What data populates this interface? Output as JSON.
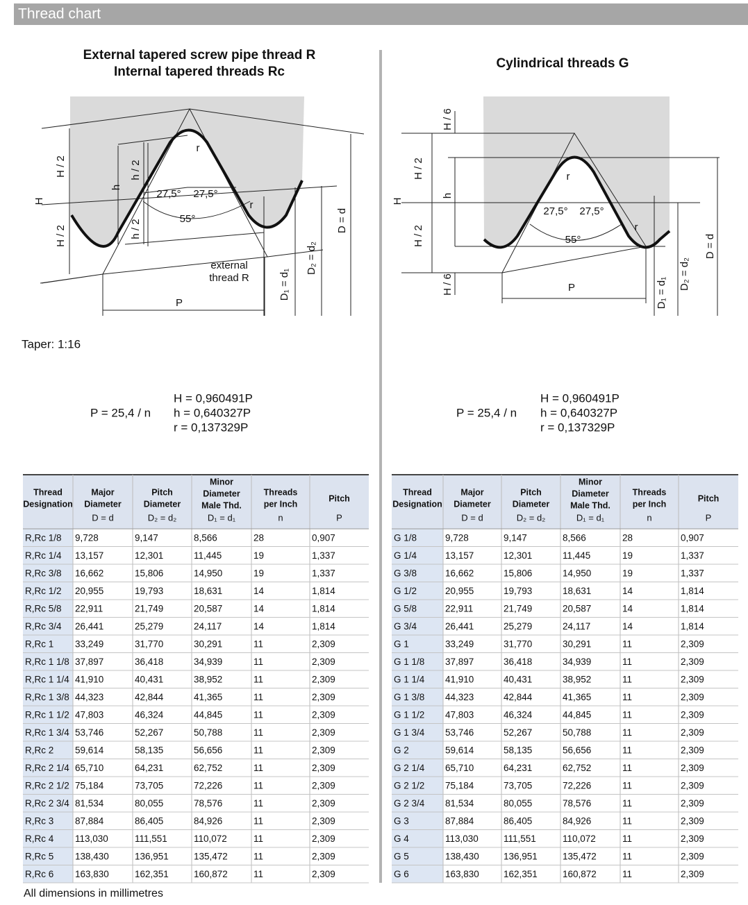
{
  "header": {
    "title": "Thread chart"
  },
  "left": {
    "title_lines": [
      "External tapered screw pipe thread R",
      "Internal tapered threads Rc"
    ],
    "diagram": {
      "h2a": "H / 2",
      "H": "H",
      "h2b": "H / 2",
      "h": "h",
      "hh2a": "h / 2",
      "hh2b": "h / 2",
      "a1": "27,5°",
      "a2": "27,5°",
      "a55": "55°",
      "r1": "r",
      "r2": "r",
      "ext1": "external",
      "ext2": "thread R",
      "P": "P",
      "D1": "D₁ = d₁",
      "D2": "D₂ = d₂",
      "D": "D = d"
    },
    "taper": "Taper: 1:16",
    "formula": {
      "p": "P = 25,4 / n",
      "lines": [
        "H = 0,960491P",
        "h = 0,640327P",
        "r = 0,137329P"
      ]
    },
    "table": {
      "headers": [
        {
          "lines": [
            "Thread",
            "Designation"
          ]
        },
        {
          "lines": [
            "Major",
            "Diameter"
          ],
          "unit": "D = d"
        },
        {
          "lines": [
            "Pitch",
            "Diameter"
          ],
          "unit": "D₂ = d₂"
        },
        {
          "lines": [
            "Minor",
            "Diameter",
            "Male Thd."
          ],
          "unit": "D₁ = d₁"
        },
        {
          "lines": [
            "Threads",
            "per Inch"
          ],
          "unit": "n"
        },
        {
          "lines": [
            "Pitch"
          ],
          "unit": "P"
        }
      ],
      "rows": [
        [
          "R,Rc 1/8",
          "9,728",
          "9,147",
          "8,566",
          "28",
          "0,907"
        ],
        [
          "R,Rc 1/4",
          "13,157",
          "12,301",
          "11,445",
          "19",
          "1,337"
        ],
        [
          "R,Rc 3/8",
          "16,662",
          "15,806",
          "14,950",
          "19",
          "1,337"
        ],
        [
          "R,Rc 1/2",
          "20,955",
          "19,793",
          "18,631",
          "14",
          "1,814"
        ],
        [
          "R,Rc 5/8",
          "22,911",
          "21,749",
          "20,587",
          "14",
          "1,814"
        ],
        [
          "R,Rc 3/4",
          "26,441",
          "25,279",
          "24,117",
          "14",
          "1,814"
        ],
        [
          "R,Rc 1",
          "33,249",
          "31,770",
          "30,291",
          "11",
          "2,309"
        ],
        [
          "R,Rc 1 1/8",
          "37,897",
          "36,418",
          "34,939",
          "11",
          "2,309"
        ],
        [
          "R,Rc 1 1/4",
          "41,910",
          "40,431",
          "38,952",
          "11",
          "2,309"
        ],
        [
          "R,Rc 1 3/8",
          "44,323",
          "42,844",
          "41,365",
          "11",
          "2,309"
        ],
        [
          "R,Rc 1 1/2",
          "47,803",
          "46,324",
          "44,845",
          "11",
          "2,309"
        ],
        [
          "R,Rc 1 3/4",
          "53,746",
          "52,267",
          "50,788",
          "11",
          "2,309"
        ],
        [
          "R,Rc 2",
          "59,614",
          "58,135",
          "56,656",
          "11",
          "2,309"
        ],
        [
          "R,Rc 2 1/4",
          "65,710",
          "64,231",
          "62,752",
          "11",
          "2,309"
        ],
        [
          "R,Rc 2 1/2",
          "75,184",
          "73,705",
          "72,226",
          "11",
          "2,309"
        ],
        [
          "R,Rc 2 3/4",
          "81,534",
          "80,055",
          "78,576",
          "11",
          "2,309"
        ],
        [
          "R,Rc 3",
          "87,884",
          "86,405",
          "84,926",
          "11",
          "2,309"
        ],
        [
          "R,Rc 4",
          "113,030",
          "111,551",
          "110,072",
          "11",
          "2,309"
        ],
        [
          "R,Rc 5",
          "138,430",
          "136,951",
          "135,472",
          "11",
          "2,309"
        ],
        [
          "R,Rc 6",
          "163,830",
          "162,351",
          "160,872",
          "11",
          "2,309"
        ]
      ]
    }
  },
  "right": {
    "title_lines": [
      "Cylindrical threads G"
    ],
    "diagram": {
      "h6a": "H / 6",
      "h2a": "H / 2",
      "H": "H",
      "h": "h",
      "h2b": "H / 2",
      "h6b": "H / 6",
      "a1": "27,5°",
      "a2": "27,5°",
      "a55": "55°",
      "r1": "r",
      "r2": "r",
      "P": "P",
      "D1": "D₁ = d₁",
      "D2": "D₂ = d₂",
      "D": "D = d"
    },
    "formula": {
      "p": "P = 25,4 / n",
      "lines": [
        "H = 0,960491P",
        "h = 0,640327P",
        "r = 0,137329P"
      ]
    },
    "table": {
      "headers": [
        {
          "lines": [
            "Thread",
            "Designation"
          ]
        },
        {
          "lines": [
            "Major",
            "Diameter"
          ],
          "unit": "D = d"
        },
        {
          "lines": [
            "Pitch",
            "Diameter"
          ],
          "unit": "D₂ = d₂"
        },
        {
          "lines": [
            "Minor",
            "Diameter",
            "Male Thd."
          ],
          "unit": "D₁ = d₁"
        },
        {
          "lines": [
            "Threads",
            "per Inch"
          ],
          "unit": "n"
        },
        {
          "lines": [
            "Pitch"
          ],
          "unit": "P"
        }
      ],
      "rows": [
        [
          "G 1/8",
          "9,728",
          "9,147",
          "8,566",
          "28",
          "0,907"
        ],
        [
          "G 1/4",
          "13,157",
          "12,301",
          "11,445",
          "19",
          "1,337"
        ],
        [
          "G 3/8",
          "16,662",
          "15,806",
          "14,950",
          "19",
          "1,337"
        ],
        [
          "G 1/2",
          "20,955",
          "19,793",
          "18,631",
          "14",
          "1,814"
        ],
        [
          "G 5/8",
          "22,911",
          "21,749",
          "20,587",
          "14",
          "1,814"
        ],
        [
          "G 3/4",
          "26,441",
          "25,279",
          "24,117",
          "14",
          "1,814"
        ],
        [
          "G 1",
          "33,249",
          "31,770",
          "30,291",
          "11",
          "2,309"
        ],
        [
          "G 1 1/8",
          "37,897",
          "36,418",
          "34,939",
          "11",
          "2,309"
        ],
        [
          "G 1 1/4",
          "41,910",
          "40,431",
          "38,952",
          "11",
          "2,309"
        ],
        [
          "G 1 3/8",
          "44,323",
          "42,844",
          "41,365",
          "11",
          "2,309"
        ],
        [
          "G 1 1/2",
          "47,803",
          "46,324",
          "44,845",
          "11",
          "2,309"
        ],
        [
          "G 1 3/4",
          "53,746",
          "52,267",
          "50,788",
          "11",
          "2,309"
        ],
        [
          "G 2",
          "59,614",
          "58,135",
          "56,656",
          "11",
          "2,309"
        ],
        [
          "G 2 1/4",
          "65,710",
          "64,231",
          "62,752",
          "11",
          "2,309"
        ],
        [
          "G 2 1/2",
          "75,184",
          "73,705",
          "72,226",
          "11",
          "2,309"
        ],
        [
          "G 2 3/4",
          "81,534",
          "80,055",
          "78,576",
          "11",
          "2,309"
        ],
        [
          "G 3",
          "87,884",
          "86,405",
          "84,926",
          "11",
          "2,309"
        ],
        [
          "G 4",
          "113,030",
          "111,551",
          "110,072",
          "11",
          "2,309"
        ],
        [
          "G 5",
          "138,430",
          "136,951",
          "135,472",
          "11",
          "2,309"
        ],
        [
          "G 6",
          "163,830",
          "162,351",
          "160,872",
          "11",
          "2,309"
        ]
      ]
    }
  },
  "footer": "All dimensions in millimetres"
}
